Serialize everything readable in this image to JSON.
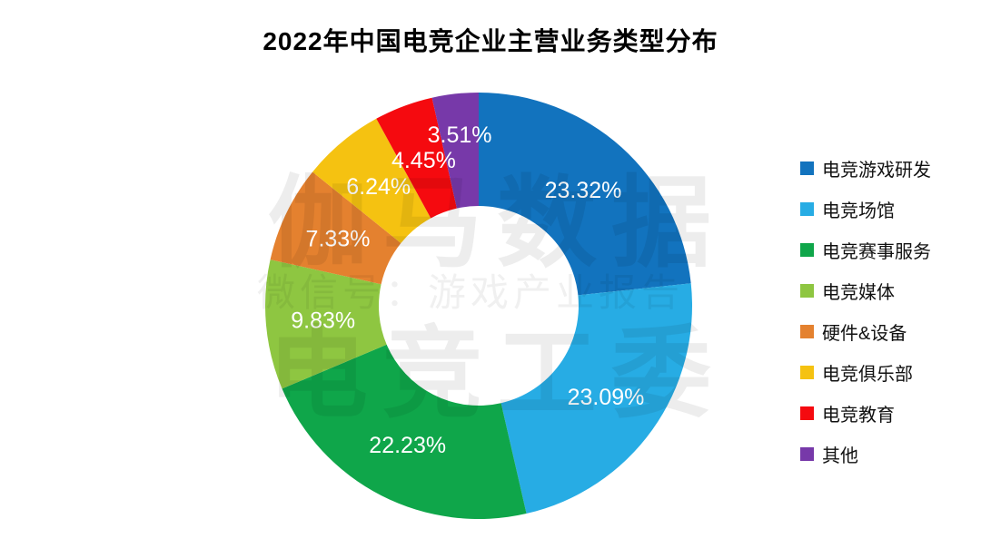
{
  "title": "2022年中国电竞企业主营业务类型分布",
  "watermark": {
    "line1": "伽马数据",
    "line2": "微信号：游戏产业报告",
    "line3": "电竞工委"
  },
  "chart_data": {
    "type": "pie",
    "subtype": "donut",
    "title": "2022年中国电竞企业主营业务类型分布",
    "categories": [
      "电竞游戏研发",
      "电竞场馆",
      "电竞赛事服务",
      "电竞媒体",
      "硬件&设备",
      "电竞俱乐部",
      "电竞教育",
      "其他"
    ],
    "values": [
      23.32,
      23.09,
      22.23,
      9.83,
      7.33,
      6.24,
      4.45,
      3.51
    ],
    "labels": [
      "23.32%",
      "23.09%",
      "22.23%",
      "9.83%",
      "7.33%",
      "6.24%",
      "4.45%",
      "3.51%"
    ],
    "colors": [
      "#1273BE",
      "#27ACE4",
      "#0FA64A",
      "#8EC641",
      "#E4812F",
      "#F5C211",
      "#F50A0F",
      "#7739A9"
    ],
    "label_color": "#FFFFFF",
    "legend_position": "right",
    "start_angle_deg": 0,
    "direction": "clockwise",
    "donut_hole_ratio": 0.47,
    "background_color": "#FFFFFF"
  }
}
